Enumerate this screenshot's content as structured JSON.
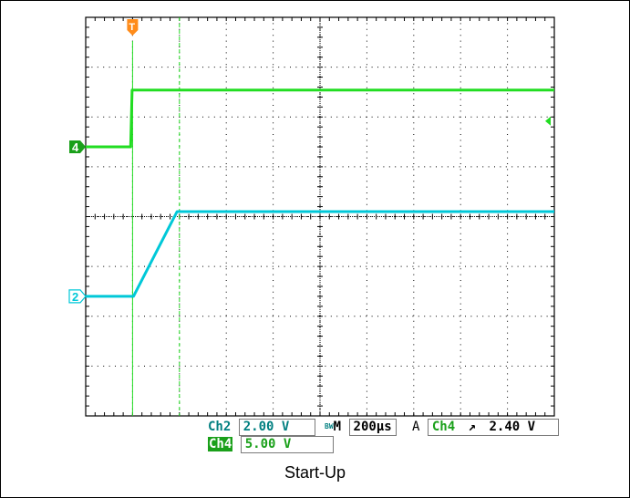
{
  "caption": "Start-Up",
  "colors": {
    "ch2": "#00c8d8",
    "ch4": "#22dd22",
    "ch4_dark": "#1aa01a",
    "trigger": "#ff8c1a",
    "grid": "#000000",
    "readout_text": "#007f80"
  },
  "chart_data": {
    "type": "line",
    "x_divisions": 10,
    "y_divisions": 8,
    "time_per_div_us": 200,
    "trigger_time_us": 200,
    "cursor_time_us": 400,
    "series": [
      {
        "name": "Ch2",
        "volts_per_div": 2.0,
        "ground_div": 2.4,
        "x_us": [
          0,
          204,
          390,
          420,
          2000
        ],
        "y_volts": [
          0,
          0,
          3.4,
          3.4,
          3.4
        ]
      },
      {
        "name": "Ch4",
        "volts_per_div": 5.0,
        "ground_div": 5.4,
        "x_us": [
          0,
          192,
          198,
          2000
        ],
        "y_volts": [
          0,
          0,
          5.7,
          5.7
        ]
      }
    ],
    "markers": {
      "ch2_ground_label": "2",
      "ch4_ground_label": "4",
      "trigger_label": "T"
    },
    "trigger_level_arrow": "right-edge",
    "grid": true
  },
  "readouts": {
    "ch2_label": "Ch2",
    "ch2_scale": "2.00 V",
    "ch4_label": "Ch4",
    "ch4_scale": "5.00 V",
    "bw_symbol": "BW",
    "m_label": "M",
    "timebase": "200µs",
    "a_label": "A",
    "trigger_source": "Ch4",
    "trigger_slope": "↗",
    "trigger_level": "2.40 V"
  }
}
